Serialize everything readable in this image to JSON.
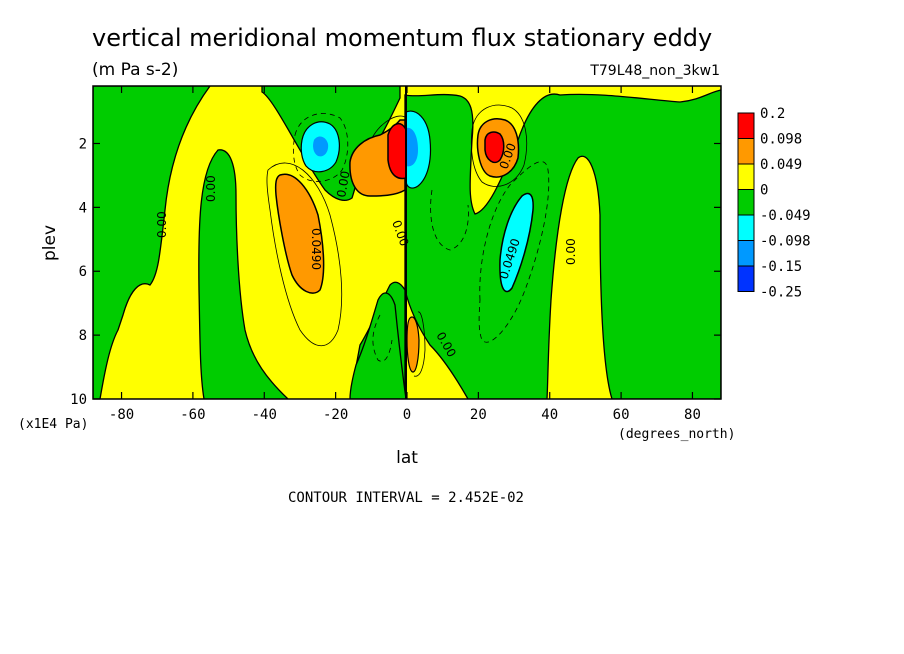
{
  "chart_data": {
    "type": "heatmap",
    "title": "vertical meridional momentum flux stationary eddy",
    "units": "(m Pa s-2)",
    "run_label": "T79L48_non_3kw1",
    "xlabel": "lat",
    "x_units": "(degrees_north)",
    "ylabel": "plev",
    "y_units": "(x1E4 Pa)",
    "xlim": [
      -88,
      88
    ],
    "ylim": [
      10,
      0.2
    ],
    "x_ticks": [
      "-80",
      "-60",
      "-40",
      "-20",
      "0",
      "20",
      "40",
      "60",
      "80"
    ],
    "y_ticks": [
      "2",
      "4",
      "6",
      "8",
      "10"
    ],
    "footer": "CONTOUR INTERVAL = 2.452E-02",
    "legend": {
      "placement": "right",
      "labels": [
        "0.2",
        "0.098",
        "0.049",
        "0",
        "-0.049",
        "-0.098",
        "-0.15",
        "-0.25"
      ],
      "colors": [
        "#ff0000",
        "#ff9900",
        "#ffff00",
        "#00cc00",
        "#00ffff",
        "#0099ff",
        "#0033ff"
      ]
    },
    "contour_labels": [
      "0.00",
      "0.00",
      "0.00",
      "0.0490",
      "0.00",
      "0.00",
      "0.00",
      "0.00",
      "0.0490",
      "0.00"
    ],
    "features": [
      {
        "lat": -30,
        "plev": 5.0,
        "value": 0.06,
        "class": "positive maximum"
      },
      {
        "lat": -26,
        "plev": 2.0,
        "value": -0.12,
        "class": "negative minimum"
      },
      {
        "lat": -2,
        "plev": 2.2,
        "value": 0.2,
        "class": "positive maximum"
      },
      {
        "lat": 3,
        "plev": 2.3,
        "value": -0.12,
        "class": "negative minimum"
      },
      {
        "lat": 25,
        "plev": 2.0,
        "value": 0.15,
        "class": "positive maximum"
      },
      {
        "lat": 30,
        "plev": 5.2,
        "value": -0.07,
        "class": "negative minimum"
      }
    ]
  }
}
